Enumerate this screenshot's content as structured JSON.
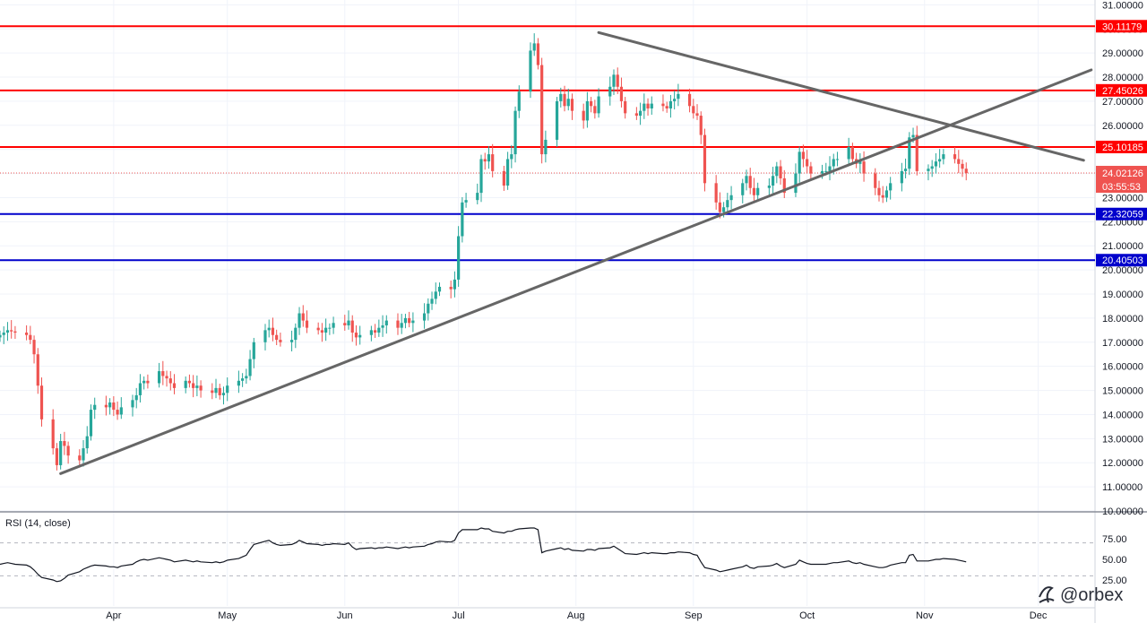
{
  "chart_data": {
    "type": "candlestick",
    "price_axis": {
      "ticks": [
        "31.00000",
        "30.00000",
        "29.00000",
        "28.00000",
        "27.00000",
        "26.00000",
        "25.00000",
        "24.00000",
        "23.00000",
        "22.00000",
        "21.00000",
        "20.00000",
        "19.00000",
        "18.00000",
        "17.00000",
        "16.00000",
        "15.00000",
        "14.00000",
        "13.00000",
        "12.00000",
        "11.00000",
        "10.00000"
      ],
      "ylim": [
        10.0,
        31.2
      ]
    },
    "time_axis": {
      "labels": [
        "Apr",
        "May",
        "Jun",
        "Jul",
        "Aug",
        "Sep",
        "Oct",
        "Nov",
        "Dec"
      ],
      "start": "2020-03-02",
      "end": "2020-12-16"
    },
    "horizontal_levels": [
      {
        "value": 30.11179,
        "label": "30.11179",
        "color": "#ff0000"
      },
      {
        "value": 27.45026,
        "label": "27.45026",
        "color": "#ff0000"
      },
      {
        "value": 25.10185,
        "label": "25.10185",
        "color": "#ff0000"
      },
      {
        "value": 22.32059,
        "label": "22.32059",
        "color": "#0000cc"
      },
      {
        "value": 20.40503,
        "label": "20.40503",
        "color": "#0000cc"
      }
    ],
    "current_price": {
      "value": 24.02126,
      "label": "24.02126",
      "countdown": "03:55:53",
      "color": "#ef5350"
    },
    "trendlines": [
      {
        "name": "",
        "from": {
          "date": "2020-03-18",
          "price": 11.55
        },
        "to": {
          "date": "2020-12-15",
          "price": 28.3
        },
        "color": "#666666"
      },
      {
        "name": "",
        "from": {
          "date": "2020-08-07",
          "price": 29.85
        },
        "to": {
          "date": "2020-12-13",
          "price": 24.55
        },
        "color": "#666666"
      }
    ],
    "candles": {
      "start": "2020-03-02",
      "close": [
        17.3,
        17.4,
        17.5,
        17.45,
        17.4,
        17.3,
        17.1,
        16.5,
        15.2,
        13.8,
        12.6,
        11.9,
        12.9,
        12.7,
        12.3,
        12.1,
        12.6,
        13.1,
        14.2,
        14.4,
        14.3,
        14.5,
        14.2,
        14.0,
        14.3,
        14.6,
        14.8,
        15.3,
        15.4,
        15.3,
        15.8,
        15.6,
        15.5,
        15.3,
        15.1,
        15.4,
        15.3,
        15.1,
        15.2,
        15.0,
        14.9,
        15.1,
        14.8,
        14.9,
        15.2,
        15.4,
        15.5,
        15.6,
        16.3,
        17.0,
        17.5,
        17.6,
        17.3,
        17.1,
        17.0,
        17.1,
        17.6,
        18.2,
        17.9,
        17.6,
        17.5,
        17.4,
        17.6,
        17.6,
        17.8,
        17.7,
        17.9,
        17.4,
        17.2,
        17.3,
        17.5,
        17.4,
        17.6,
        17.7,
        17.9,
        17.6,
        17.8,
        18.0,
        17.8,
        17.9,
        18.2,
        18.6,
        18.8,
        19.1,
        19.3,
        19.2,
        19.6,
        21.4,
        22.8,
        22.9,
        23.2,
        24.6,
        24.5,
        24.8,
        24.1,
        23.5,
        24.6,
        24.8,
        26.6,
        27.4,
        29.1,
        29.4,
        28.5,
        24.8,
        25.4,
        27.0,
        27.3,
        26.8,
        27.1,
        26.6,
        26.2,
        27.0,
        26.8,
        26.5,
        27.2,
        27.6,
        28.1,
        27.6,
        27.0,
        26.5,
        26.4,
        26.6,
        26.9,
        26.7,
        26.9,
        26.8,
        26.7,
        27.0,
        27.1,
        27.3,
        26.8,
        26.5,
        26.4,
        25.6,
        23.6,
        22.8,
        22.4,
        22.6,
        22.9,
        23.1,
        23.6,
        23.9,
        23.4,
        23.1,
        23.4,
        23.5,
        23.9,
        24.3,
        23.8,
        23.2,
        24.0,
        24.9,
        24.6,
        24.3,
        24.0,
        24.1,
        24.1,
        24.3,
        24.6,
        24.6,
        25.1,
        24.6,
        24.4,
        24.5,
        24.0,
        23.4,
        23.1,
        23.0,
        23.3,
        23.6,
        24.1,
        24.2,
        25.5,
        25.6,
        24.1,
        24.2,
        24.3,
        24.5,
        24.6,
        24.8,
        24.6,
        24.4,
        24.2,
        24.02
      ]
    }
  },
  "rsi": {
    "title": "RSI (14, close)",
    "ticks": [
      "75.00",
      "50.00",
      "25.00"
    ],
    "values": [
      44,
      45,
      46,
      45,
      44,
      43,
      41,
      37,
      32,
      28,
      25,
      23,
      24,
      27,
      31,
      35,
      38,
      40,
      42,
      43,
      42,
      41,
      41,
      40,
      42,
      44,
      47,
      49,
      50,
      49,
      52,
      51,
      50,
      49,
      47,
      49,
      48,
      47,
      48,
      47,
      46,
      47,
      46,
      47,
      49,
      51,
      53,
      55,
      62,
      68,
      72,
      73,
      70,
      68,
      67,
      68,
      70,
      73,
      71,
      69,
      68,
      67,
      68,
      68,
      69,
      68,
      70,
      65,
      62,
      63,
      64,
      63,
      64,
      64,
      65,
      63,
      64,
      65,
      64,
      65,
      66,
      68,
      69,
      71,
      72,
      71,
      73,
      82,
      86,
      86,
      86,
      88,
      87,
      87,
      84,
      82,
      84,
      84,
      86,
      87,
      88,
      88,
      86,
      58,
      60,
      63,
      64,
      62,
      63,
      61,
      60,
      62,
      62,
      61,
      63,
      64,
      66,
      63,
      60,
      57,
      56,
      57,
      58,
      57,
      58,
      57,
      57,
      58,
      58,
      59,
      58,
      56,
      55,
      47,
      40,
      37,
      35,
      36,
      37,
      38,
      41,
      43,
      40,
      39,
      41,
      42,
      43,
      45,
      42,
      40,
      44,
      49,
      47,
      45,
      44,
      44,
      44,
      45,
      46,
      46,
      48,
      46,
      45,
      46,
      44,
      41,
      40,
      40,
      41,
      43,
      46,
      46,
      55,
      56,
      48,
      48,
      49,
      50,
      50,
      51,
      50,
      49,
      48,
      47
    ]
  },
  "watermark": "@orbex"
}
